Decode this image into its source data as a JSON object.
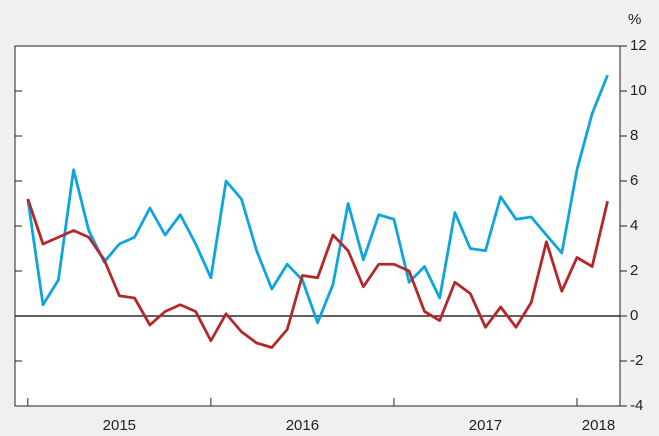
{
  "chart_data": {
    "type": "line",
    "y_label": "%",
    "x": [
      2015.0,
      2015.083,
      2015.167,
      2015.25,
      2015.333,
      2015.417,
      2015.5,
      2015.583,
      2015.667,
      2015.75,
      2015.833,
      2015.917,
      2016.0,
      2016.083,
      2016.167,
      2016.25,
      2016.333,
      2016.417,
      2016.5,
      2016.583,
      2016.667,
      2016.75,
      2016.833,
      2016.917,
      2017.0,
      2017.083,
      2017.167,
      2017.25,
      2017.333,
      2017.417,
      2017.5,
      2017.583,
      2017.667,
      2017.75,
      2017.833,
      2017.917,
      2018.0,
      2018.083,
      2018.167
    ],
    "series": [
      {
        "color": "#0ea5df",
        "values": [
          5.2,
          0.5,
          1.6,
          6.5,
          3.8,
          2.4,
          3.2,
          3.5,
          4.8,
          3.6,
          4.5,
          3.2,
          1.7,
          6.0,
          5.2,
          2.9,
          1.2,
          2.3,
          1.6,
          -0.3,
          1.4,
          5.0,
          2.5,
          4.5,
          4.3,
          1.5,
          2.2,
          0.8,
          4.6,
          3.0,
          2.9,
          5.3,
          4.3,
          4.4,
          3.6,
          2.8,
          6.5,
          9.0,
          10.7
        ]
      },
      {
        "color": "#b5282a",
        "values": [
          5.2,
          3.2,
          3.5,
          3.8,
          3.5,
          2.5,
          0.9,
          0.8,
          -0.4,
          0.2,
          0.5,
          0.2,
          -1.1,
          0.1,
          -0.7,
          -1.2,
          -1.4,
          -0.6,
          1.8,
          1.7,
          3.6,
          2.9,
          1.3,
          2.3,
          2.3,
          2.0,
          0.2,
          -0.2,
          1.5,
          1.0,
          -0.5,
          0.4,
          -0.5,
          0.6,
          3.3,
          1.1,
          2.6,
          2.2,
          5.1
        ]
      }
    ],
    "xlim": [
      2014.93,
      2018.235
    ],
    "xticks": [
      2015,
      2016,
      2017,
      2018
    ],
    "ylim": [
      -4,
      12
    ],
    "yticks": [
      -4,
      -2,
      0,
      2,
      4,
      6,
      8,
      10,
      12
    ]
  }
}
